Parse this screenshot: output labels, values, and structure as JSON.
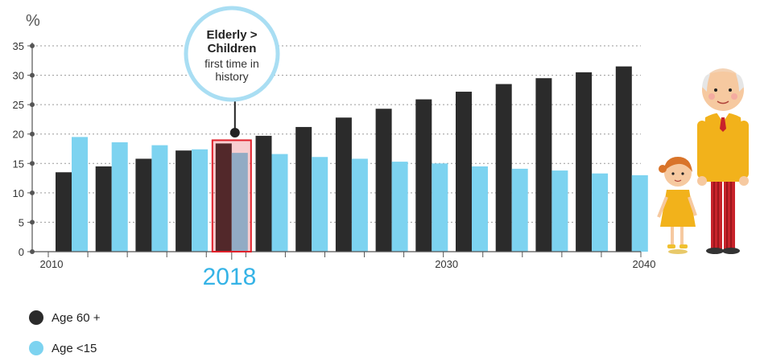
{
  "chart_data": {
    "type": "bar",
    "y_unit_label": "%",
    "ylim": [
      0,
      35
    ],
    "yticks": [
      0,
      5,
      10,
      15,
      20,
      25,
      30,
      35
    ],
    "x_tick_labels": [
      "2010",
      "2030",
      "2040"
    ],
    "x": [
      2010,
      2012,
      2014,
      2016,
      2018,
      2020,
      2022,
      2024,
      2026,
      2028,
      2030,
      2032,
      2034,
      2036,
      2038
    ],
    "series": [
      {
        "name": "Age 60 +",
        "color": "#2b2b2b",
        "values": [
          13.5,
          14.5,
          15.8,
          17.2,
          18.4,
          19.7,
          21.2,
          22.8,
          24.3,
          25.9,
          27.2,
          28.5,
          29.5,
          30.5,
          31.5
        ]
      },
      {
        "name": "Age <15",
        "color": "#7dd3f0",
        "values": [
          19.5,
          18.6,
          18.1,
          17.4,
          16.8,
          16.6,
          16.1,
          15.8,
          15.3,
          15.0,
          14.5,
          14.1,
          13.8,
          13.3,
          13.0
        ]
      }
    ],
    "grid": true,
    "highlight": {
      "year_label": "2018",
      "callout_bold": "Elderly >\nChildren",
      "callout_text": "first time in\nhistory"
    },
    "legend_position": "bottom-left"
  },
  "colors": {
    "elderly": "#2b2b2b",
    "children": "#7dd3f0",
    "highlight_border": "#e0202a",
    "highlight_year": "#35b3e6",
    "callout_ring": "#a9def3"
  },
  "illustrations": [
    "elderly-man-icon",
    "young-girl-icon"
  ]
}
